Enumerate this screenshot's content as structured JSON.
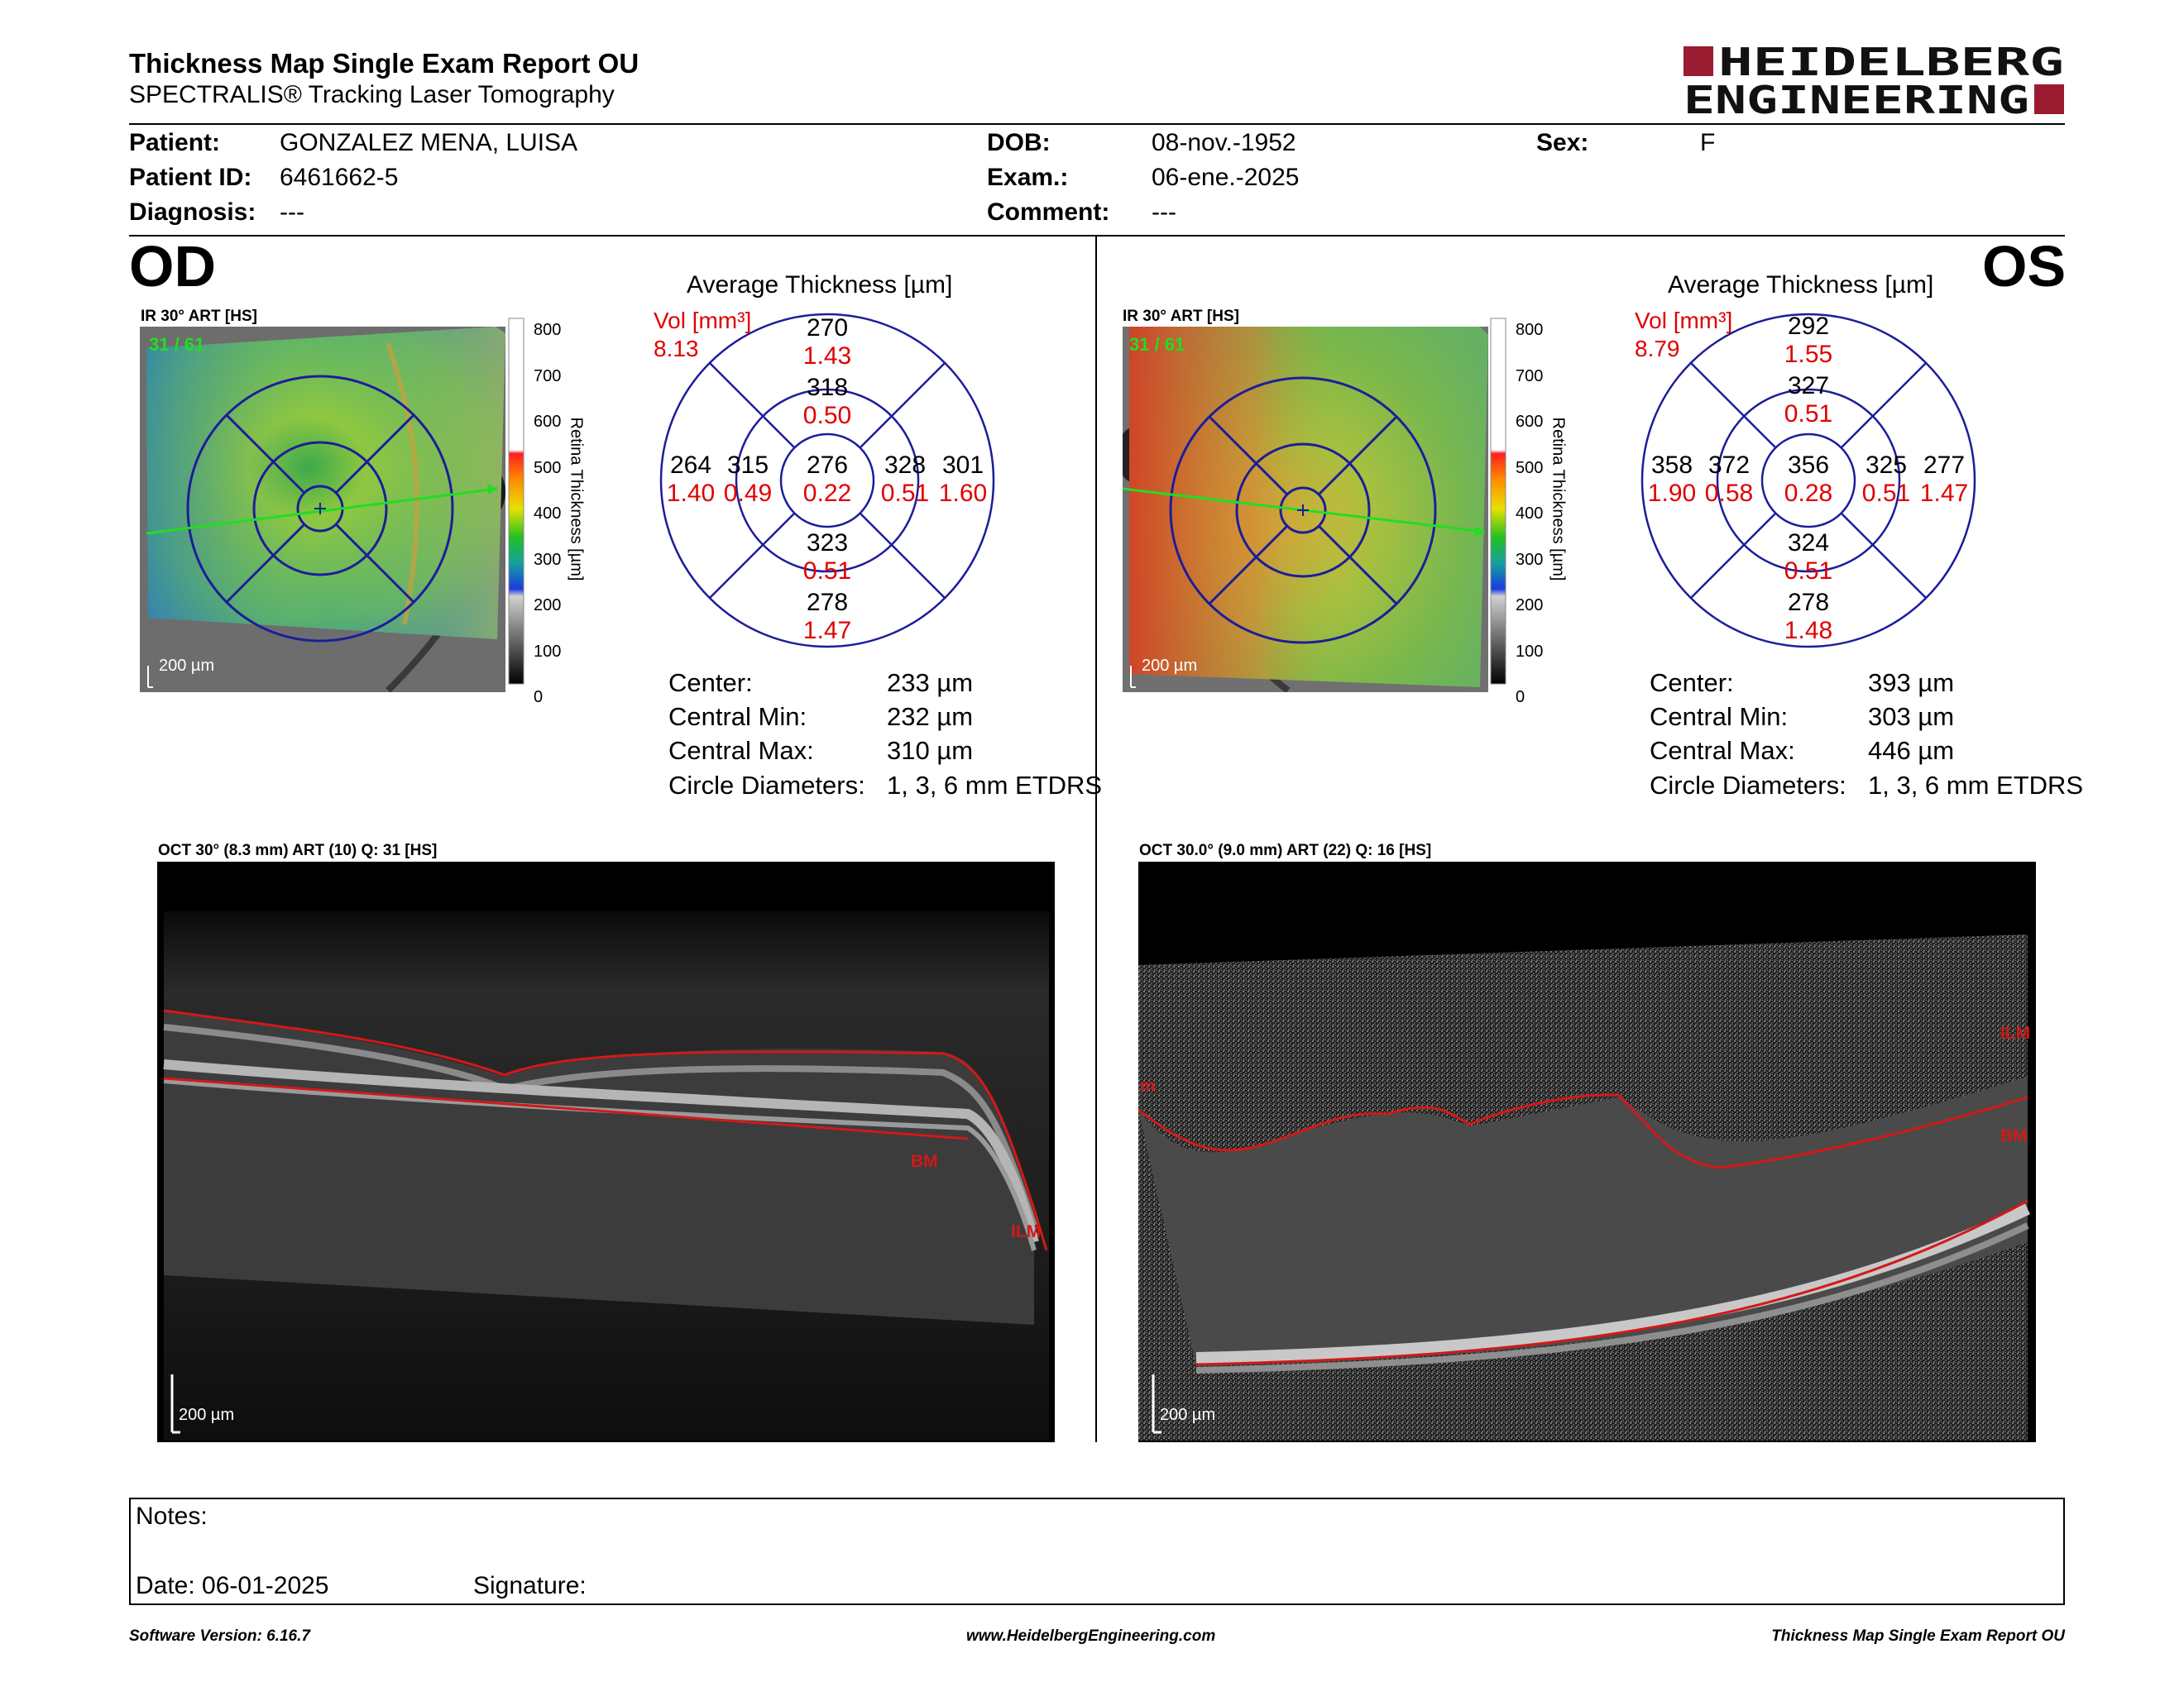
{
  "header": {
    "title": "Thickness Map Single Exam Report OU",
    "subtitle": "SPECTRALIS® Tracking Laser Tomography",
    "logo_line1": "HEIDELBERG",
    "logo_line2": "ENGINEERING",
    "brand_color": "#9b1b30"
  },
  "patient": {
    "patient_label": "Patient:",
    "patient_value": "GONZALEZ MENA, LUISA",
    "id_label": "Patient ID:",
    "id_value": "6461662-5",
    "diag_label": "Diagnosis:",
    "diag_value": "---",
    "dob_label": "DOB:",
    "dob_value": "08-nov.-1952",
    "exam_label": "Exam.:",
    "exam_value": "06-ene.-2025",
    "comment_label": "Comment:",
    "comment_value": "---",
    "sex_label": "Sex:",
    "sex_value": "F"
  },
  "od": {
    "eye": "OD",
    "ir_label": "IR 30° ART [HS]",
    "frame": "31 / 61",
    "scale": "200 µm",
    "colorbar_ticks": [
      "800",
      "700",
      "600",
      "500",
      "400",
      "300",
      "200",
      "100",
      "0"
    ],
    "colorbar_title": "Retina Thickness [µm]",
    "avg_title": "Average Thickness [µm]",
    "vol_label": "Vol [mm³]",
    "vol_value": "8.13",
    "grid": {
      "center_t": "276",
      "center_v": "0.22",
      "inner_sup_t": "318",
      "inner_sup_v": "0.50",
      "inner_inf_t": "323",
      "inner_inf_v": "0.51",
      "inner_left_t": "315",
      "inner_left_v": "0.49",
      "inner_right_t": "328",
      "inner_right_v": "0.51",
      "outer_sup_t": "270",
      "outer_sup_v": "1.43",
      "outer_inf_t": "278",
      "outer_inf_v": "1.47",
      "outer_left_t": "264",
      "outer_left_v": "1.40",
      "outer_right_t": "301",
      "outer_right_v": "1.60"
    },
    "stats": {
      "center_l": "Center:",
      "center_v": "233 µm",
      "min_l": "Central Min:",
      "min_v": "232 µm",
      "max_l": "Central Max:",
      "max_v": "310 µm",
      "diam_l": "Circle Diameters:",
      "diam_v": "1, 3, 6 mm ETDRS"
    },
    "oct_label": "OCT 30° (8.3 mm) ART (10) Q: 31 [HS]",
    "oct_scale": "200 µm",
    "bm_label": "BM",
    "ilm_label": "ILM"
  },
  "os": {
    "eye": "OS",
    "ir_label": "IR 30° ART [HS]",
    "frame": "31 / 61",
    "scale": "200 µm",
    "colorbar_ticks": [
      "800",
      "700",
      "600",
      "500",
      "400",
      "300",
      "200",
      "100",
      "0"
    ],
    "colorbar_title": "Retina Thickness [µm]",
    "avg_title": "Average Thickness [µm]",
    "vol_label": "Vol [mm³]",
    "vol_value": "8.79",
    "grid": {
      "center_t": "356",
      "center_v": "0.28",
      "inner_sup_t": "327",
      "inner_sup_v": "0.51",
      "inner_inf_t": "324",
      "inner_inf_v": "0.51",
      "inner_left_t": "372",
      "inner_left_v": "0.58",
      "inner_right_t": "325",
      "inner_right_v": "0.51",
      "outer_sup_t": "292",
      "outer_sup_v": "1.55",
      "outer_inf_t": "278",
      "outer_inf_v": "1.48",
      "outer_left_t": "358",
      "outer_left_v": "1.90",
      "outer_right_t": "277",
      "outer_right_v": "1.47"
    },
    "stats": {
      "center_l": "Center:",
      "center_v": "393 µm",
      "min_l": "Central Min:",
      "min_v": "303 µm",
      "max_l": "Central Max:",
      "max_v": "446 µm",
      "diam_l": "Circle Diameters:",
      "diam_v": "1, 3, 6 mm ETDRS"
    },
    "oct_label": "OCT 30.0° (9.0 mm) ART (22) Q: 16 [HS]",
    "oct_scale": "200 µm",
    "bm_label": "BM",
    "ilm_label": "ILM",
    "ilm_left_label": "m"
  },
  "notes": {
    "notes_label": "Notes:",
    "date_label": "Date: 06-01-2025",
    "signature_label": "Signature:"
  },
  "footer": {
    "version": "Software Version: 6.16.7",
    "url": "www.HeidelbergEngineering.com",
    "report": "Thickness Map Single Exam Report OU"
  }
}
